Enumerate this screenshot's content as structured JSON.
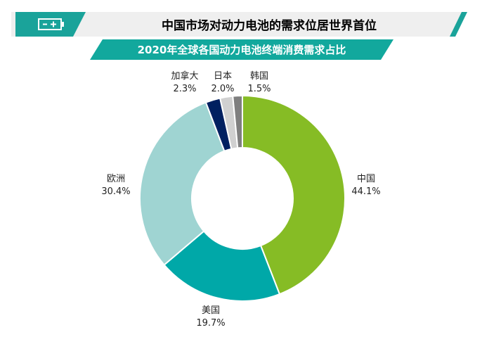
{
  "header": {
    "title": "中国市场对动力电池的需求位居世界首位",
    "subtitle": "2020年全球各国动力电池终端消费需求占比",
    "icon": "battery-icon"
  },
  "colors": {
    "header_teal": "#1aa39a",
    "header_gray": "#eeeeee",
    "subtitle_teal": "#12a89d"
  },
  "chart_data": {
    "type": "pie",
    "donut": true,
    "title": "2020年全球各国动力电池终端消费需求占比",
    "categories": [
      "中国",
      "美国",
      "欧洲",
      "加拿大",
      "日本",
      "韩国"
    ],
    "values": [
      44.1,
      19.7,
      30.4,
      2.3,
      2.0,
      1.5
    ],
    "value_labels": [
      "44.1%",
      "19.7%",
      "30.4%",
      "2.3%",
      "2.0%",
      "1.5%"
    ],
    "colors": [
      "#86bc25",
      "#00a8a8",
      "#9fd4d2",
      "#002060",
      "#d0d0d0",
      "#7f7f7f"
    ],
    "start": "12 o'clock, clockwise"
  }
}
